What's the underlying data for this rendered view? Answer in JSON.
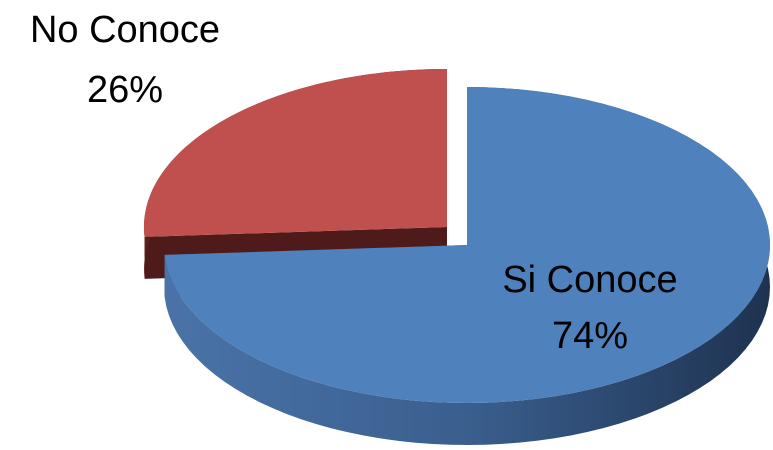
{
  "chart_data": {
    "type": "pie",
    "categories": [
      "Si Conoce",
      "No Conoce"
    ],
    "values": [
      74,
      26
    ],
    "value_labels": [
      "74%",
      "26%"
    ],
    "colors": [
      "#4f81bd",
      "#c0504d"
    ],
    "three_d": true
  }
}
